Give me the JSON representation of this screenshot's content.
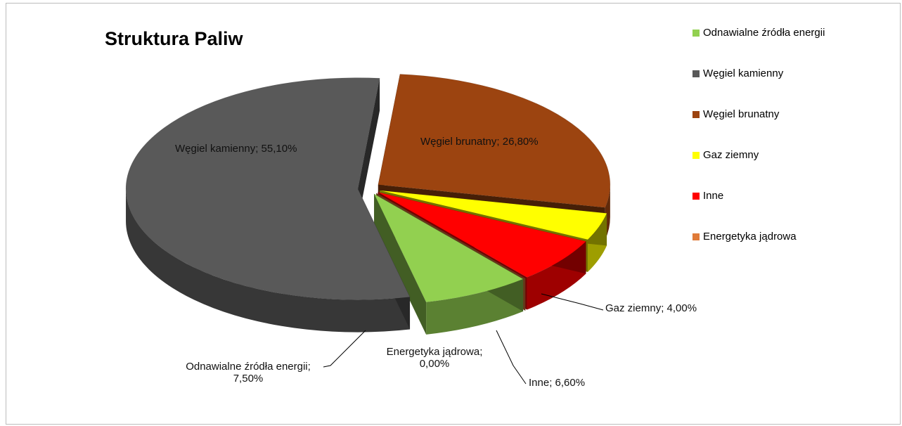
{
  "chart_data": {
    "type": "pie",
    "title": "Struktura Paliw",
    "legend_position": "right",
    "three_d": true,
    "series": [
      {
        "name": "Odnawialne źródła energii",
        "value": 7.5,
        "label": "Odnawialne źródła energii;",
        "label_value": "7,50%",
        "color": "#92d050"
      },
      {
        "name": "Węgiel kamienny",
        "value": 55.1,
        "label": "Węgiel kamienny; 55,10%",
        "color": "#595959"
      },
      {
        "name": "Węgiel brunatny",
        "value": 26.8,
        "label": "Węgiel brunatny; 26,80%",
        "color": "#9c4410"
      },
      {
        "name": "Gaz ziemny",
        "value": 4.0,
        "label": "Gaz ziemny; 4,00%",
        "color": "#ffff00"
      },
      {
        "name": "Inne",
        "value": 6.6,
        "label": "Inne; 6,60%",
        "color": "#ff0000"
      },
      {
        "name": "Energetyka jądrowa",
        "value": 0.0,
        "label": "Energetyka jądrowa;",
        "label_value": "0,00%",
        "color": "#e07b39"
      }
    ]
  }
}
